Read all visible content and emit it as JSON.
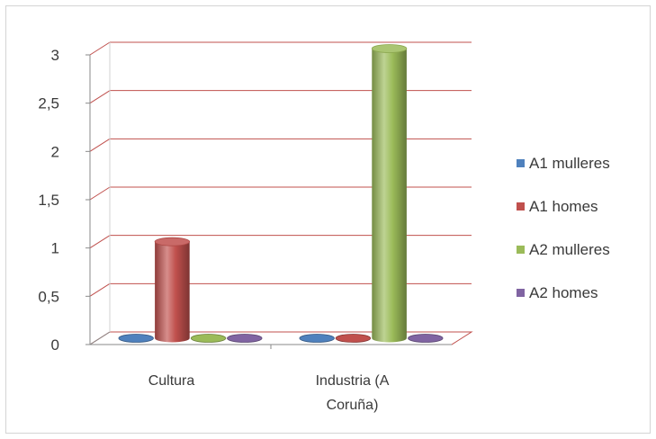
{
  "chart_data": {
    "type": "bar",
    "style": "3d-cylinder",
    "categories": [
      "Cultura",
      "Industria (A Coruña)"
    ],
    "category_lines": [
      [
        "Cultura"
      ],
      [
        "Industria (A",
        "Coruña)"
      ]
    ],
    "series": [
      {
        "name": "A1 mulleres",
        "values": [
          0,
          0
        ],
        "color": "#4f81bd"
      },
      {
        "name": "A1 homes",
        "values": [
          1,
          0
        ],
        "color": "#c0504d"
      },
      {
        "name": "A2 mulleres",
        "values": [
          0,
          3
        ],
        "color": "#9bbb59"
      },
      {
        "name": "A2 homes",
        "values": [
          0,
          0
        ],
        "color": "#8064a2"
      }
    ],
    "y_ticks": [
      "0",
      "0,5",
      "1",
      "1,5",
      "2",
      "2,5",
      "3"
    ],
    "ylim": [
      0,
      3
    ],
    "grid": true,
    "legend_position": "right",
    "gridline_color": "#c0504d"
  }
}
